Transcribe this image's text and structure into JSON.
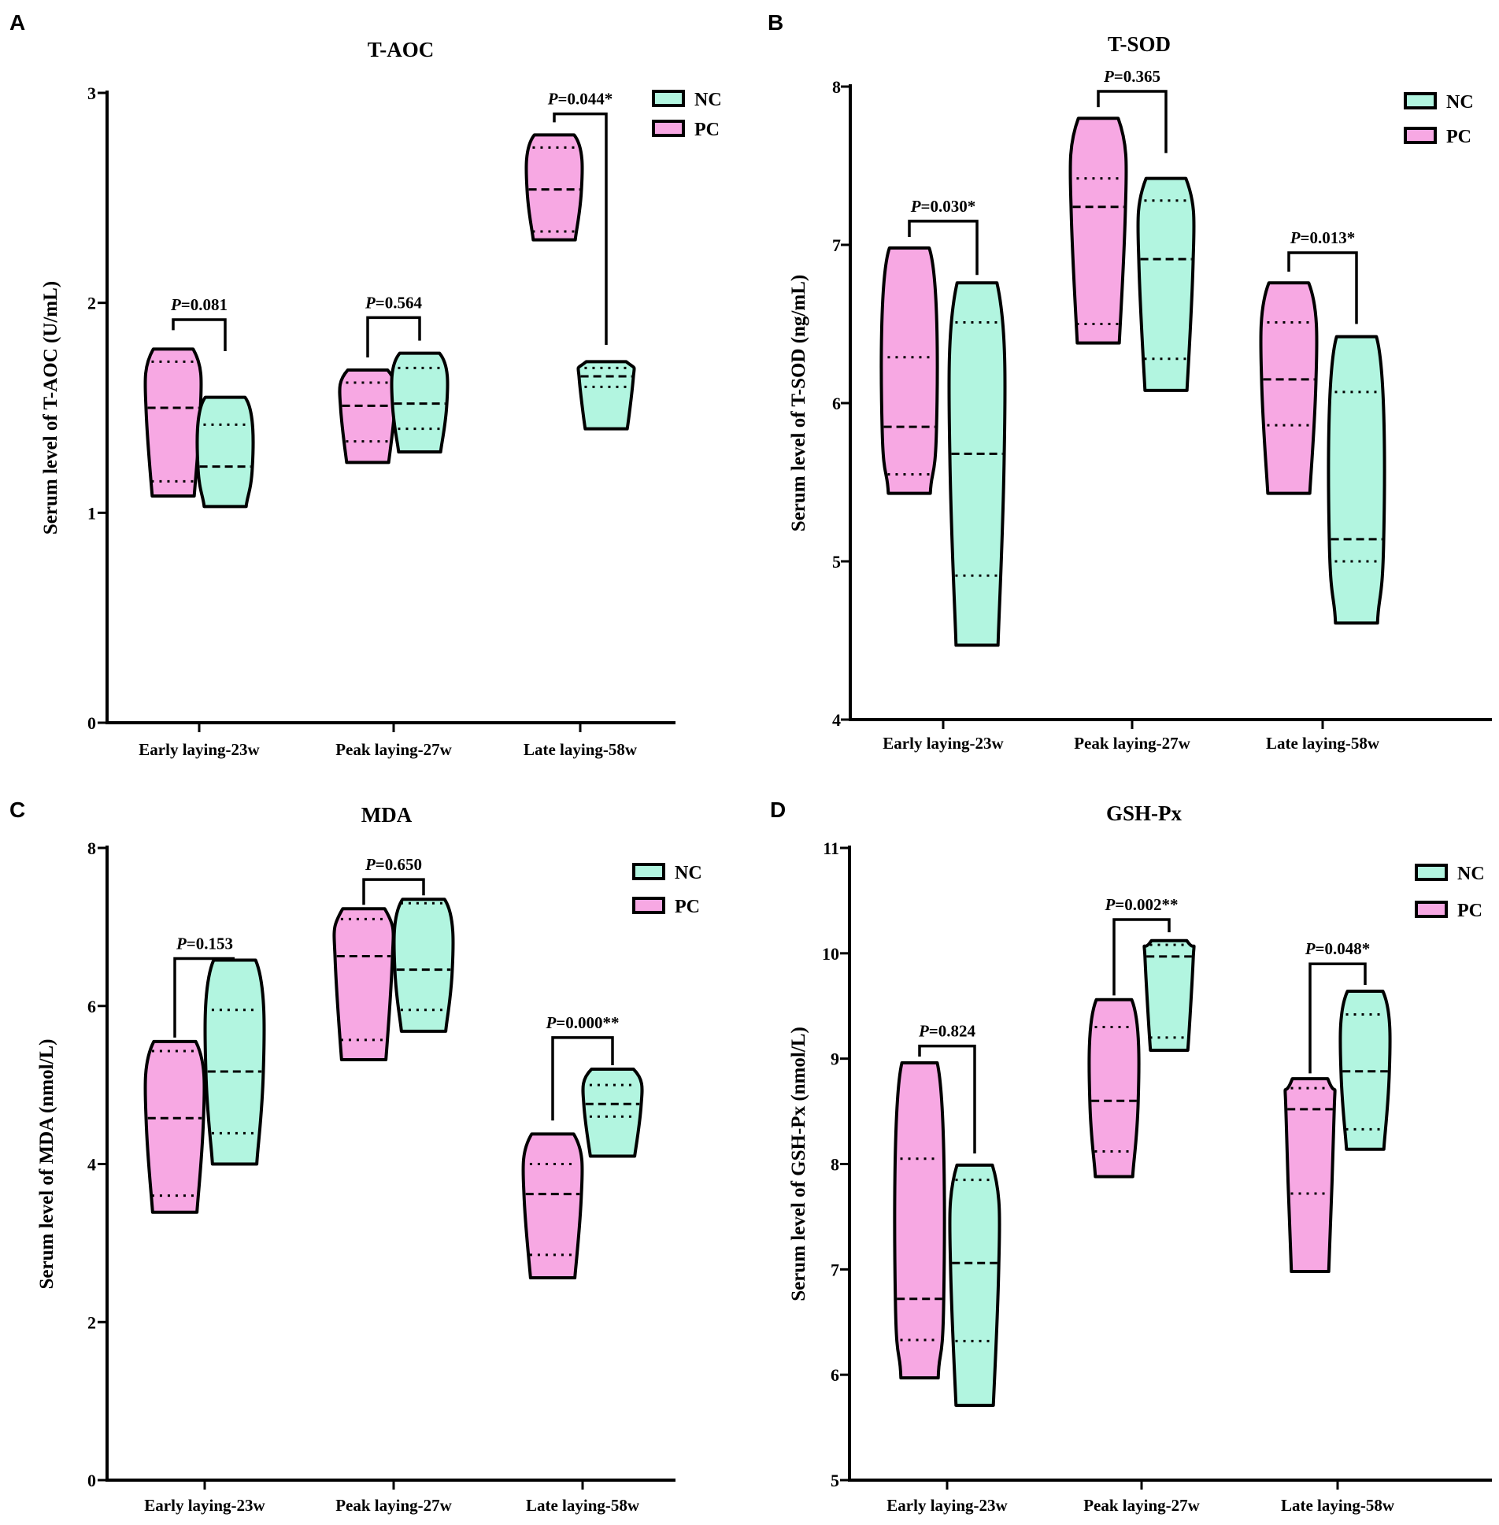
{
  "colors": {
    "pc": "#f7a8e3",
    "nc": "#b2f5e0",
    "ink": "#000000"
  },
  "legend": {
    "nc": "NC",
    "pc": "PC"
  },
  "chart_data": [
    {
      "type": "violin",
      "id": "A",
      "letter": "A",
      "title": "T-AOC",
      "ylabel": "Serum level of T-AOC (U/mL)",
      "ylim": [
        0,
        3
      ],
      "yticks": [
        "0",
        "1",
        "2",
        "3"
      ],
      "categories": [
        "Early laying-23w",
        "Peak laying-27w",
        "Late laying-58w"
      ],
      "series": [
        {
          "name": "PC",
          "values": [
            {
              "min": 1.08,
              "max": 1.78,
              "q1": 1.15,
              "median": 1.5,
              "q3": 1.72
            },
            {
              "min": 1.24,
              "max": 1.68,
              "q1": 1.34,
              "median": 1.51,
              "q3": 1.62
            },
            {
              "min": 2.3,
              "max": 2.8,
              "q1": 2.34,
              "median": 2.54,
              "q3": 2.74
            }
          ]
        },
        {
          "name": "NC",
          "values": [
            {
              "min": 1.03,
              "max": 1.55,
              "q1": 1.03,
              "median": 1.22,
              "q3": 1.42
            },
            {
              "min": 1.29,
              "max": 1.76,
              "q1": 1.4,
              "median": 1.52,
              "q3": 1.69
            },
            {
              "min": 1.4,
              "max": 1.72,
              "q1": 1.6,
              "median": 1.65,
              "q3": 1.69
            }
          ]
        }
      ],
      "pvalues": [
        [
          "P",
          "=0.081"
        ],
        [
          "P",
          "=0.564"
        ],
        [
          "P",
          "=0.044*"
        ]
      ],
      "brackets": [
        {
          "left": 1.87,
          "right": 1.77,
          "top": 1.92
        },
        {
          "left": 1.74,
          "right": 1.82,
          "top": 1.93
        },
        {
          "left": 2.86,
          "right": 1.8,
          "top": 2.9
        }
      ]
    },
    {
      "type": "violin",
      "id": "B",
      "letter": "B",
      "title": "T-SOD",
      "ylabel": "Serum level of T-SOD (ng/mL)",
      "ylim": [
        4,
        8
      ],
      "yticks": [
        "4",
        "5",
        "6",
        "7",
        "8"
      ],
      "categories": [
        "Early laying-23w",
        "Peak laying-27w",
        "Late laying-58w"
      ],
      "series": [
        {
          "name": "PC",
          "values": [
            {
              "min": 5.43,
              "max": 6.98,
              "q1": 5.55,
              "median": 5.85,
              "q3": 6.29
            },
            {
              "min": 6.38,
              "max": 7.8,
              "q1": 6.5,
              "median": 7.24,
              "q3": 7.42
            },
            {
              "min": 5.43,
              "max": 6.76,
              "q1": 5.86,
              "median": 6.15,
              "q3": 6.51
            }
          ]
        },
        {
          "name": "NC",
          "values": [
            {
              "min": 4.47,
              "max": 6.76,
              "q1": 4.91,
              "median": 5.68,
              "q3": 6.51
            },
            {
              "min": 6.08,
              "max": 7.42,
              "q1": 6.28,
              "median": 6.91,
              "q3": 7.28
            },
            {
              "min": 4.61,
              "max": 6.42,
              "q1": 5.0,
              "median": 5.14,
              "q3": 6.07
            }
          ]
        }
      ],
      "pvalues": [
        [
          "P",
          "=0.030*"
        ],
        [
          "P",
          "=0.365"
        ],
        [
          "P",
          "=0.013*"
        ]
      ],
      "brackets": [
        {
          "left": 7.05,
          "right": 6.81,
          "top": 7.15
        },
        {
          "left": 7.87,
          "right": 7.58,
          "top": 7.97
        },
        {
          "left": 6.83,
          "right": 6.5,
          "top": 6.95
        }
      ]
    },
    {
      "type": "violin",
      "id": "C",
      "letter": "C",
      "title": "MDA",
      "ylabel": "Serum level of MDA (nmol/L)",
      "ylim": [
        0,
        8
      ],
      "yticks": [
        "0",
        "2",
        "4",
        "6",
        "8"
      ],
      "categories": [
        "Early laying-23w",
        "Peak laying-27w",
        "Late laying-58w"
      ],
      "series": [
        {
          "name": "PC",
          "values": [
            {
              "min": 3.39,
              "max": 5.55,
              "q1": 3.6,
              "median": 4.58,
              "q3": 5.43
            },
            {
              "min": 5.32,
              "max": 7.23,
              "q1": 5.57,
              "median": 6.63,
              "q3": 7.1
            },
            {
              "min": 2.56,
              "max": 4.38,
              "q1": 2.85,
              "median": 3.62,
              "q3": 4.0
            }
          ]
        },
        {
          "name": "NC",
          "values": [
            {
              "min": 4.0,
              "max": 6.58,
              "q1": 4.39,
              "median": 5.17,
              "q3": 5.95
            },
            {
              "min": 5.68,
              "max": 7.35,
              "q1": 5.95,
              "median": 6.46,
              "q3": 7.3
            },
            {
              "min": 4.1,
              "max": 5.2,
              "q1": 4.6,
              "median": 4.76,
              "q3": 5.0
            }
          ]
        }
      ],
      "pvalues": [
        [
          "P",
          "=0.153"
        ],
        [
          "P",
          "=0.650"
        ],
        [
          "P",
          "=0.000**"
        ]
      ],
      "brackets": [
        {
          "left": 5.6,
          "right": 6.6,
          "top": 6.6
        },
        {
          "left": 7.28,
          "right": 7.4,
          "top": 7.6
        },
        {
          "left": 4.55,
          "right": 5.25,
          "top": 5.6
        }
      ]
    },
    {
      "type": "violin",
      "id": "D",
      "letter": "D",
      "title": "GSH-Px",
      "ylabel": "Serum level of GSH-Px (nmol/L)",
      "ylim": [
        5,
        11
      ],
      "yticks": [
        "5",
        "6",
        "7",
        "8",
        "9",
        "10",
        "11"
      ],
      "categories": [
        "Early laying-23w",
        "Peak laying-27w",
        "Late laying-58w"
      ],
      "series": [
        {
          "name": "PC",
          "values": [
            {
              "min": 5.97,
              "max": 8.96,
              "q1": 6.33,
              "median": 6.72,
              "q3": 8.05
            },
            {
              "min": 7.88,
              "max": 9.56,
              "q1": 8.12,
              "median": 8.6,
              "q3": 9.3
            },
            {
              "min": 6.98,
              "max": 8.81,
              "q1": 7.72,
              "median": 8.52,
              "q3": 8.72
            }
          ]
        },
        {
          "name": "NC",
          "values": [
            {
              "min": 5.71,
              "max": 7.99,
              "q1": 6.32,
              "median": 7.06,
              "q3": 7.85
            },
            {
              "min": 9.08,
              "max": 10.12,
              "q1": 9.2,
              "median": 9.97,
              "q3": 10.08
            },
            {
              "min": 8.14,
              "max": 9.64,
              "q1": 8.33,
              "median": 8.88,
              "q3": 9.42
            }
          ]
        }
      ],
      "pvalues": [
        [
          "P",
          "=0.824"
        ],
        [
          "P",
          "=0.002**"
        ],
        [
          "P",
          "=0.048*"
        ]
      ],
      "brackets": [
        {
          "left": 9.02,
          "right": 8.1,
          "top": 9.12
        },
        {
          "left": 9.6,
          "right": 10.2,
          "top": 10.32
        },
        {
          "left": 8.86,
          "right": 9.7,
          "top": 9.9
        }
      ]
    }
  ]
}
